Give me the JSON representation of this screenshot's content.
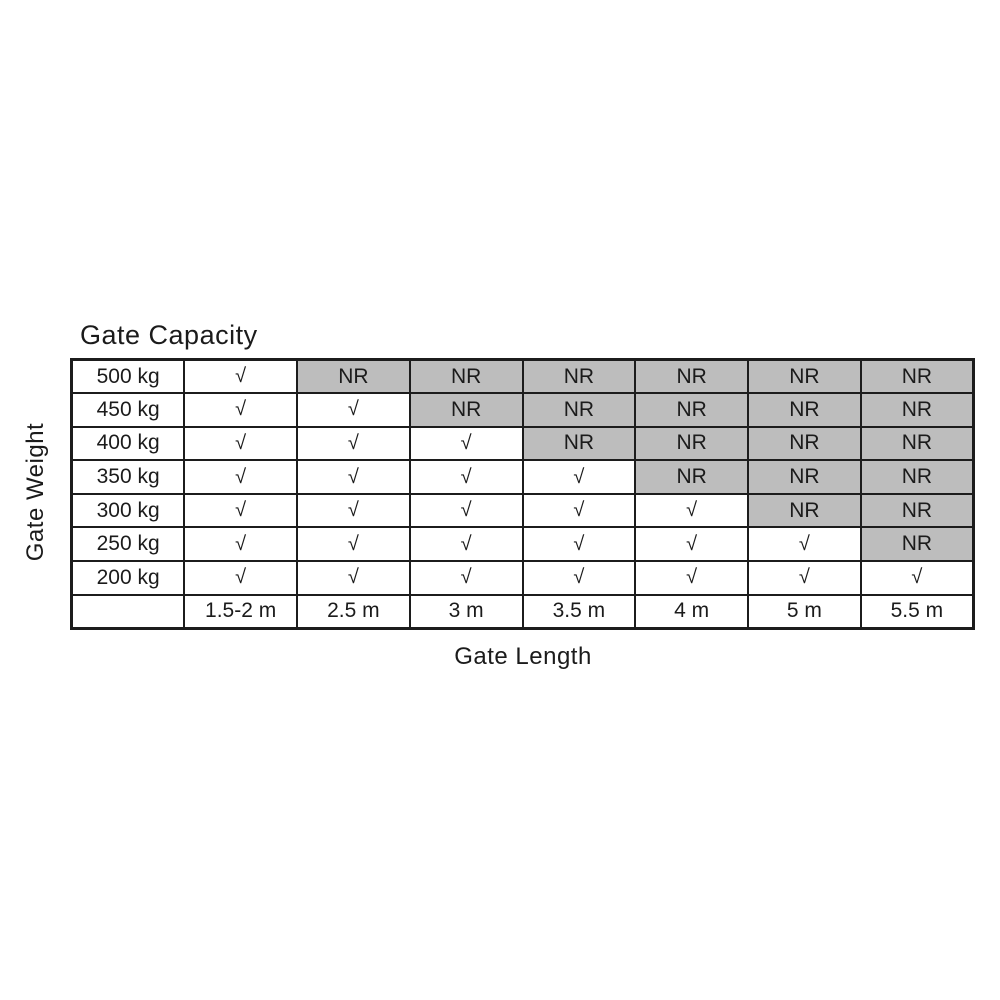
{
  "title": "Gate Capacity",
  "x_axis_label": "Gate Length",
  "y_axis_label": "Gate Weight",
  "symbols": {
    "supported": "√",
    "not_recommended": "NR"
  },
  "colors": {
    "nr_cell_bg": "#bdbdbd",
    "supported_cell_bg": "#ffffff",
    "grid_border": "#1c1c1c",
    "text": "#1b1b1b",
    "page_bg": "#ffffff"
  },
  "chart_data": {
    "type": "table",
    "title": "Gate Capacity",
    "xlabel": "Gate Length",
    "ylabel": "Gate Weight",
    "length_columns": [
      "1.5-2 m",
      "2.5 m",
      "3 m",
      "3.5 m",
      "4 m",
      "5 m",
      "5.5 m"
    ],
    "weight_rows": [
      "500 kg",
      "450 kg",
      "400 kg",
      "350 kg",
      "300 kg",
      "250 kg",
      "200 kg"
    ],
    "cells": [
      [
        "check",
        "NR",
        "NR",
        "NR",
        "NR",
        "NR",
        "NR"
      ],
      [
        "check",
        "check",
        "NR",
        "NR",
        "NR",
        "NR",
        "NR"
      ],
      [
        "check",
        "check",
        "check",
        "NR",
        "NR",
        "NR",
        "NR"
      ],
      [
        "check",
        "check",
        "check",
        "check",
        "NR",
        "NR",
        "NR"
      ],
      [
        "check",
        "check",
        "check",
        "check",
        "check",
        "NR",
        "NR"
      ],
      [
        "check",
        "check",
        "check",
        "check",
        "check",
        "check",
        "NR"
      ],
      [
        "check",
        "check",
        "check",
        "check",
        "check",
        "check",
        "check"
      ]
    ]
  }
}
